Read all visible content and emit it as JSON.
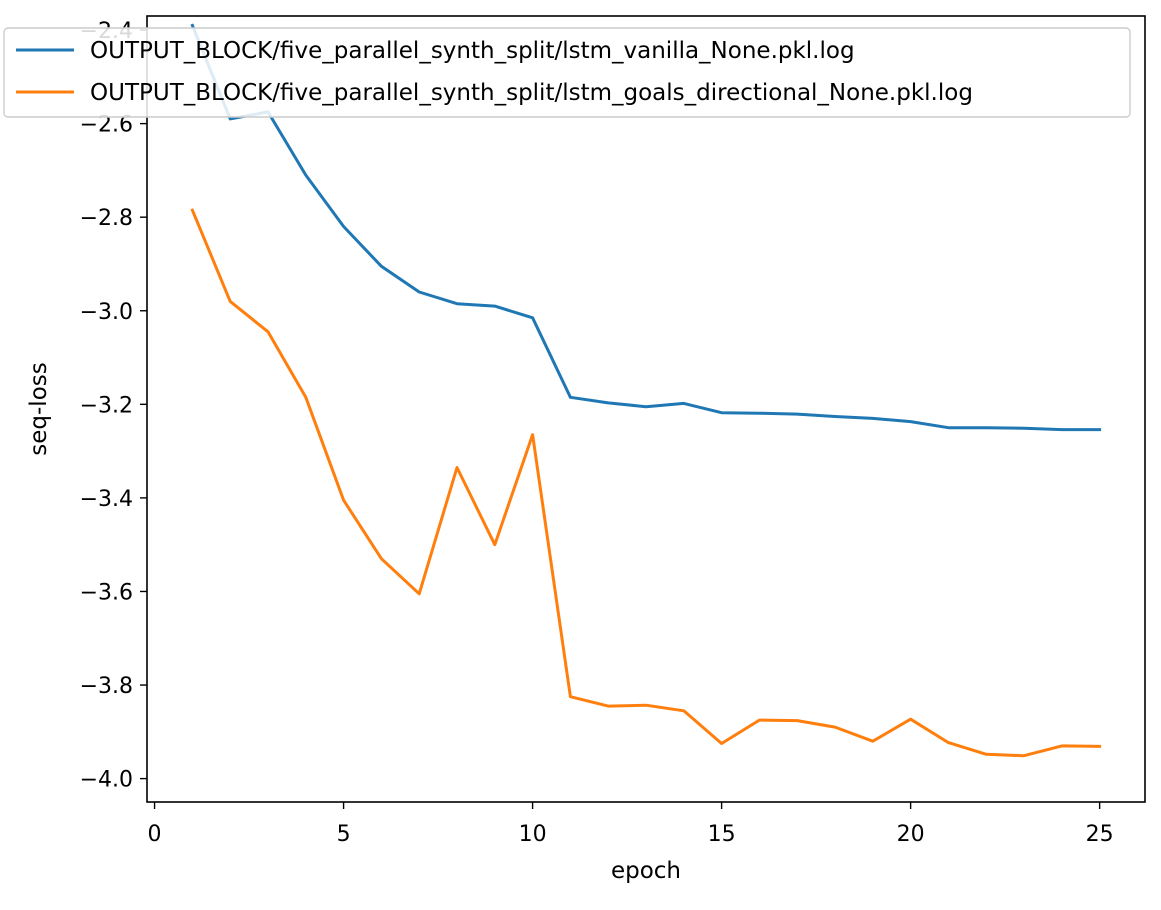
{
  "chart_data": {
    "type": "line",
    "title": "",
    "xlabel": "epoch",
    "ylabel": "seq-loss",
    "xlim": [
      -0.2,
      26.2
    ],
    "ylim": [
      -4.05,
      -2.37
    ],
    "xticks": [
      0,
      5,
      10,
      15,
      20,
      25
    ],
    "yticks": [
      -4.0,
      -3.8,
      -3.6,
      -3.4,
      -3.2,
      -3.0,
      -2.8,
      -2.6,
      -2.4
    ],
    "x_tick_labels": [
      "0",
      "5",
      "10",
      "15",
      "20",
      "25"
    ],
    "y_tick_labels": [
      "−4.0",
      "−3.8",
      "−3.6",
      "−3.4",
      "−3.2",
      "−3.0",
      "−2.8",
      "−2.6",
      "−2.4"
    ],
    "grid": false,
    "legend_position": "top",
    "x": [
      1,
      2,
      3,
      4,
      5,
      6,
      7,
      8,
      9,
      10,
      11,
      12,
      13,
      14,
      15,
      16,
      17,
      18,
      19,
      20,
      21,
      22,
      23,
      24,
      25
    ],
    "series": [
      {
        "name": "OUTPUT_BLOCK/five_parallel_synth_split/lstm_vanilla_None.pkl.log",
        "color": "#1f77b4",
        "values": [
          -2.39,
          -2.59,
          -2.575,
          -2.71,
          -2.82,
          -2.905,
          -2.96,
          -2.985,
          -2.99,
          -3.015,
          -3.185,
          -3.197,
          -3.205,
          -3.198,
          -3.218,
          -3.219,
          -3.221,
          -3.226,
          -3.23,
          -3.237,
          -3.25,
          -3.25,
          -3.251,
          -3.254,
          -3.254
        ]
      },
      {
        "name": "OUTPUT_BLOCK/five_parallel_synth_split/lstm_goals_directional_None.pkl.log",
        "color": "#ff7f0e",
        "values": [
          -2.785,
          -2.98,
          -3.045,
          -3.185,
          -3.405,
          -3.53,
          -3.605,
          -3.335,
          -3.5,
          -3.265,
          -3.825,
          -3.845,
          -3.843,
          -3.855,
          -3.925,
          -3.875,
          -3.876,
          -3.89,
          -3.92,
          -3.873,
          -3.923,
          -3.948,
          -3.951,
          -3.93,
          -3.931
        ]
      }
    ]
  }
}
